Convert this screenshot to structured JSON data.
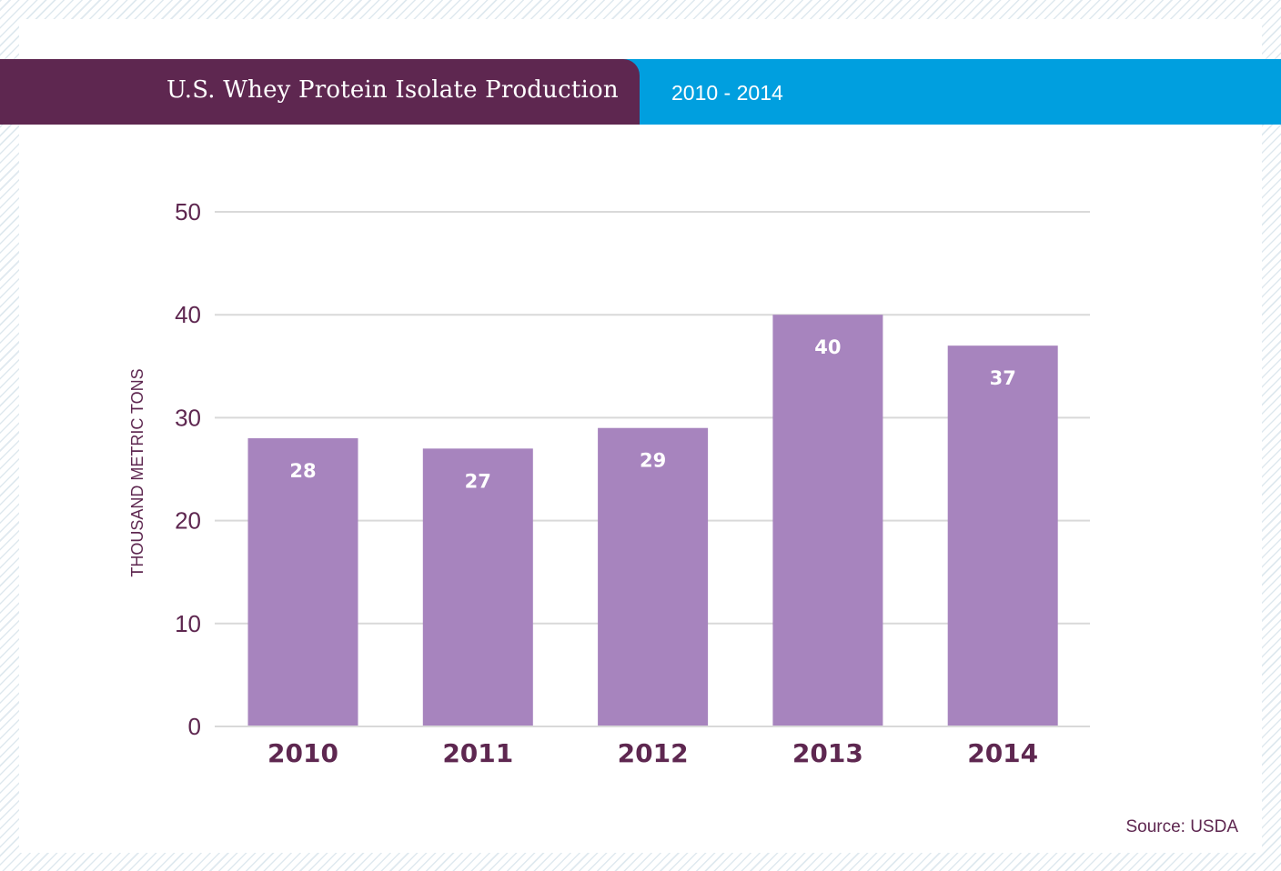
{
  "header": {
    "title": "U.S. Whey Protein Isolate Production",
    "period": "2010 - 2014"
  },
  "colors": {
    "title_band": "#5e2750",
    "period_band": "#009fdf",
    "bar": "#a784be",
    "axis_text": "#5e2750",
    "grid": "#d9d9d9"
  },
  "chart_data": {
    "type": "bar",
    "title": "U.S. Whey Protein Isolate Production",
    "subtitle": "2010 - 2014",
    "categories": [
      "2010",
      "2011",
      "2012",
      "2013",
      "2014"
    ],
    "values": [
      28,
      27,
      29,
      40,
      37
    ],
    "data_labels": [
      "28",
      "27",
      "29",
      "40",
      "37"
    ],
    "ylabel": "THOUSAND METRIC TONS",
    "xlabel": "",
    "ylim": [
      0,
      50
    ],
    "yticks": [
      0,
      10,
      20,
      30,
      40,
      50
    ],
    "grid": true,
    "legend": false
  },
  "footer": {
    "source": "Source: USDA"
  }
}
